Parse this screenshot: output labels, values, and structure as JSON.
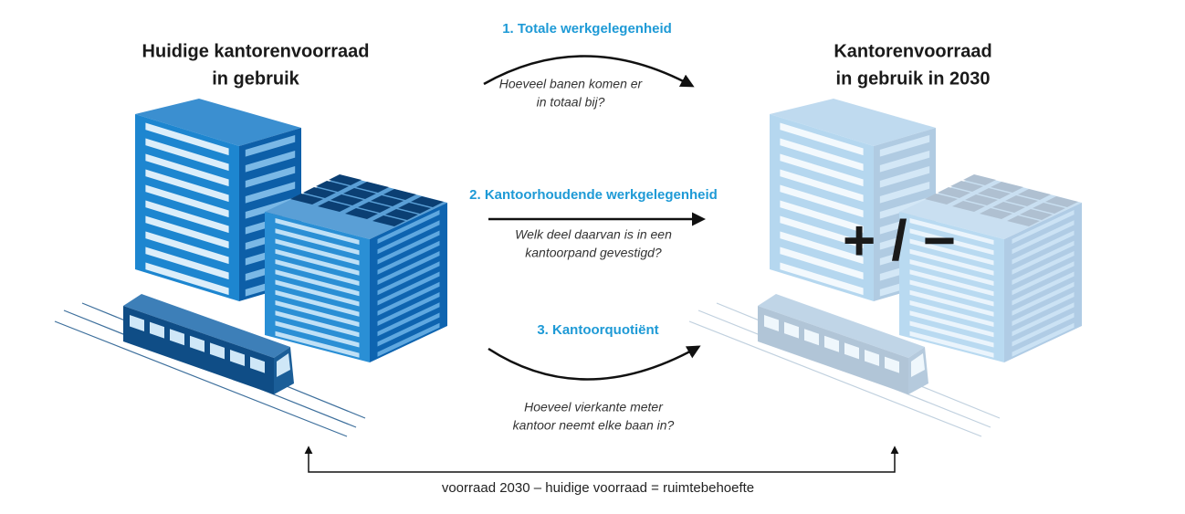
{
  "left": {
    "title": [
      "Huidige kantorenvoorraad",
      "in gebruik"
    ]
  },
  "right": {
    "title": [
      "Kantorenvoorraad",
      "in gebruik in 2030"
    ],
    "operator": "+ / −"
  },
  "steps": [
    {
      "title": "1. Totale werkgelegenheid",
      "question": [
        "Hoeveel banen komen er",
        "in totaal bij?"
      ]
    },
    {
      "title": "2. Kantoorhoudende werkgelegenheid",
      "question": [
        "Welk deel daarvan is in een",
        "kantoorpand gevestigd?"
      ]
    },
    {
      "title": "3. Kantoorquotiënt",
      "question": [
        "Hoeveel vierkante meter",
        "kantoor neemt elke baan in?"
      ]
    }
  ],
  "formula": "voorraad 2030 – huidige voorraad = ruimtebehoefte"
}
